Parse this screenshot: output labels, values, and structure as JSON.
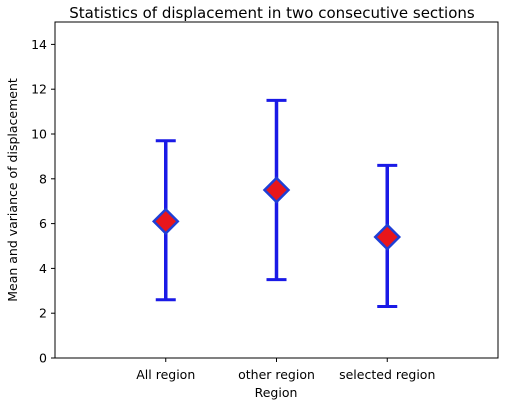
{
  "chart_data": {
    "type": "scatter",
    "title": "Statistics of displacement in two consecutive sections",
    "xlabel": "Region",
    "ylabel": "Mean and variance of displacement",
    "categories": [
      "All region",
      "other region",
      "selected region"
    ],
    "series": [
      {
        "means": [
          6.1,
          7.5,
          5.4
        ],
        "lower": [
          2.6,
          3.5,
          2.3
        ],
        "upper": [
          9.7,
          11.5,
          8.6
        ],
        "marker": "diamond",
        "marker_fill": "#e8161b",
        "marker_edge": "#1f3fd6",
        "errorbar_color": "#1a1ae6"
      }
    ],
    "ylim": [
      0,
      15
    ],
    "yticks": [
      0,
      2,
      4,
      6,
      8,
      10,
      12,
      14
    ],
    "xlim": [
      0,
      4
    ],
    "grid": false,
    "legend": "none"
  }
}
